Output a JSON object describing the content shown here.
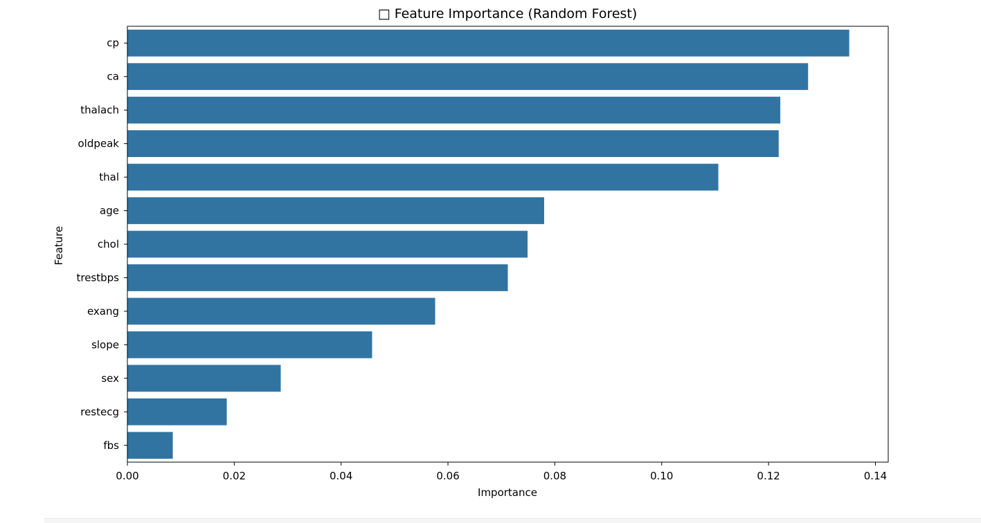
{
  "chart_data": {
    "type": "bar",
    "orientation": "horizontal",
    "title": "□ Feature Importance (Random Forest)",
    "xlabel": "Importance",
    "ylabel": "Feature",
    "categories": [
      "cp",
      "ca",
      "thalach",
      "oldpeak",
      "thal",
      "age",
      "chol",
      "trestbps",
      "exang",
      "slope",
      "sex",
      "restecg",
      "fbs"
    ],
    "values": [
      0.1351,
      0.1274,
      0.1222,
      0.1219,
      0.1106,
      0.078,
      0.0749,
      0.0712,
      0.0576,
      0.0458,
      0.0287,
      0.0186,
      0.0085
    ],
    "xlim": [
      0,
      0.1424
    ],
    "xticks": [
      0.0,
      0.02,
      0.04,
      0.06,
      0.08,
      0.1,
      0.12,
      0.14
    ],
    "xtick_labels": [
      "0.00",
      "0.02",
      "0.04",
      "0.06",
      "0.08",
      "0.10",
      "0.12",
      "0.14"
    ],
    "grid": false,
    "legend": "none",
    "bar_color": "#3274a1"
  }
}
